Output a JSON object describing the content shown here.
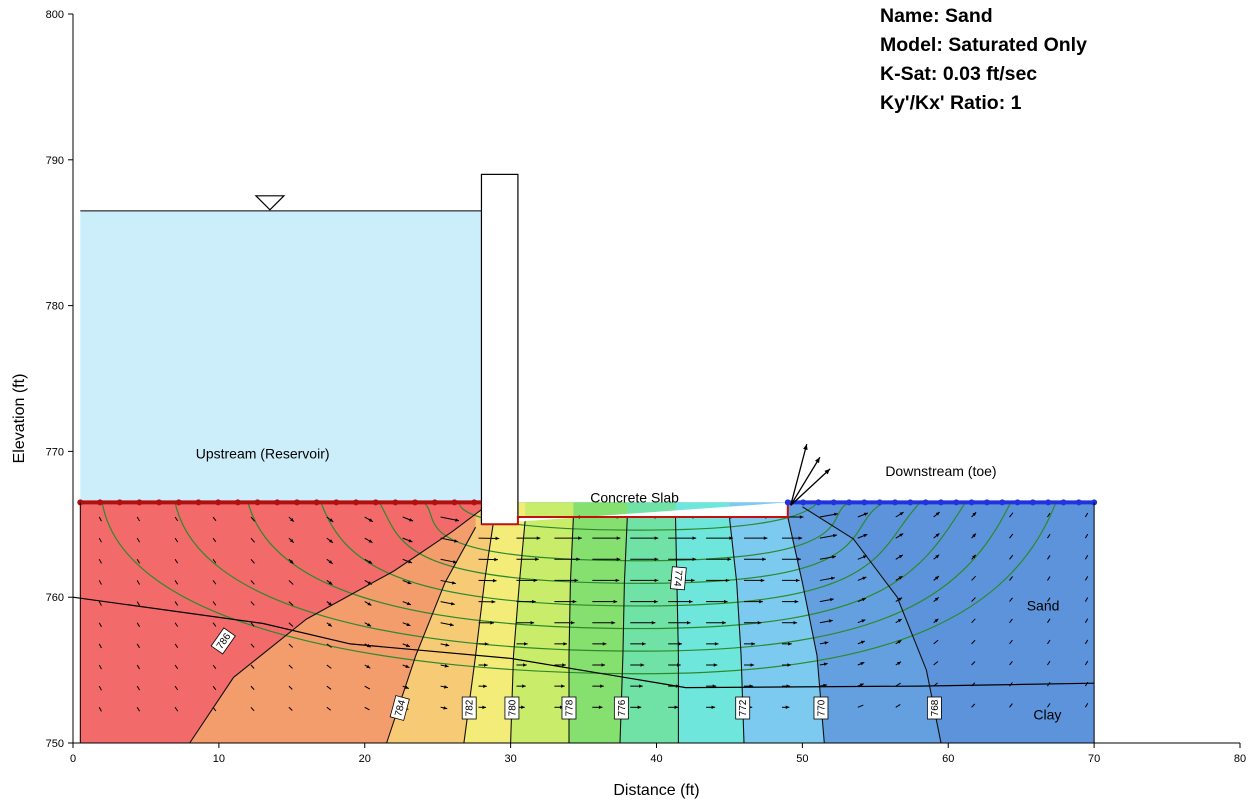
{
  "info": {
    "name": "Name: Sand",
    "model": "Model: Saturated Only",
    "ksat": "K-Sat: 0.03 ft/sec",
    "ratio": "Ky'/Kx' Ratio: 1"
  },
  "chart_data": {
    "type": "contour",
    "title": "",
    "xlabel": "Distance (ft)",
    "ylabel": "Elevation (ft)",
    "xlim": [
      0,
      80
    ],
    "ylim": [
      750,
      800
    ],
    "xticks": [
      0,
      10,
      20,
      30,
      40,
      50,
      60,
      70,
      80
    ],
    "yticks": [
      750,
      760,
      770,
      780,
      790,
      800
    ],
    "grid": false,
    "regions": {
      "upstream": "Upstream (Reservoir)",
      "downstream": "Downstream (toe)",
      "slab": "Concrete Slab",
      "sand": "Sand",
      "clay": "Clay"
    },
    "domain": {
      "x": [
        0.5,
        70
      ],
      "y_bottom": 750,
      "ground_elevation": 766.5
    },
    "reservoir_level": 786.5,
    "wall": {
      "x": [
        28,
        30.5
      ],
      "top": 789,
      "bottom": 765
    },
    "slab": {
      "x": [
        30.5,
        49
      ],
      "bottom": 765.5
    },
    "sand_clay_boundary": [
      [
        0,
        760.0
      ],
      [
        13,
        758.2
      ],
      [
        19,
        756.8
      ],
      [
        30,
        755.8
      ],
      [
        42,
        753.8
      ],
      [
        58,
        753.9
      ],
      [
        70,
        754.1
      ]
    ],
    "head_contours": [
      {
        "label": "786",
        "points": [
          [
            8,
            750
          ],
          [
            11,
            754.5
          ],
          [
            16,
            758.5
          ],
          [
            22,
            761.8
          ],
          [
            26,
            764.5
          ],
          [
            28,
            766
          ]
        ]
      },
      {
        "label": "784",
        "points": [
          [
            21.5,
            750
          ],
          [
            23.5,
            756
          ],
          [
            25.5,
            761
          ],
          [
            27.6,
            764.8
          ]
        ]
      },
      {
        "label": "782",
        "points": [
          [
            26.8,
            750
          ],
          [
            27.6,
            756
          ],
          [
            28.2,
            761
          ],
          [
            28.8,
            765
          ]
        ]
      },
      {
        "label": "780",
        "points": [
          [
            30,
            750
          ],
          [
            30.2,
            756
          ],
          [
            30.6,
            761
          ],
          [
            31,
            765.3
          ]
        ]
      },
      {
        "label": "778",
        "points": [
          [
            34,
            750
          ],
          [
            34,
            756
          ],
          [
            34.1,
            761
          ],
          [
            34.3,
            765.5
          ]
        ]
      },
      {
        "label": "776",
        "points": [
          [
            37.5,
            750
          ],
          [
            37.7,
            756
          ],
          [
            37.8,
            761
          ],
          [
            38,
            765.5
          ]
        ]
      },
      {
        "label": "774",
        "points": [
          [
            41.5,
            750
          ],
          [
            41.5,
            756
          ],
          [
            41.4,
            761
          ],
          [
            41.3,
            765.5
          ]
        ]
      },
      {
        "label": "772",
        "points": [
          [
            46,
            750
          ],
          [
            45.8,
            756
          ],
          [
            45.5,
            761
          ],
          [
            45,
            765.5
          ]
        ]
      },
      {
        "label": "770",
        "points": [
          [
            51.5,
            750
          ],
          [
            51,
            756
          ],
          [
            50,
            761
          ],
          [
            49,
            765.5
          ]
        ]
      },
      {
        "label": "768",
        "points": [
          [
            59.5,
            750
          ],
          [
            58.5,
            755
          ],
          [
            56.5,
            760
          ],
          [
            53.5,
            764
          ],
          [
            50,
            766.2
          ]
        ]
      }
    ],
    "color_scale": {
      "stops": [
        [
          786.5,
          "#f26a6a"
        ],
        [
          784,
          "#f39c6c"
        ],
        [
          782,
          "#f7cb75"
        ],
        [
          780,
          "#f3ec78"
        ],
        [
          778,
          "#c9ec6a"
        ],
        [
          776,
          "#86e070"
        ],
        [
          774,
          "#70e2a6"
        ],
        [
          772,
          "#6fe6db"
        ],
        [
          770,
          "#7dcaf0"
        ],
        [
          768,
          "#64a0e0"
        ],
        [
          766.5,
          "#5c93db"
        ]
      ]
    },
    "reservoir_color": "#cceefa",
    "boundary_colors": {
      "upstream": "#b01010",
      "downstream": "#2233dd",
      "flow_path": "#2c8a2c",
      "contour": "#111111"
    }
  }
}
